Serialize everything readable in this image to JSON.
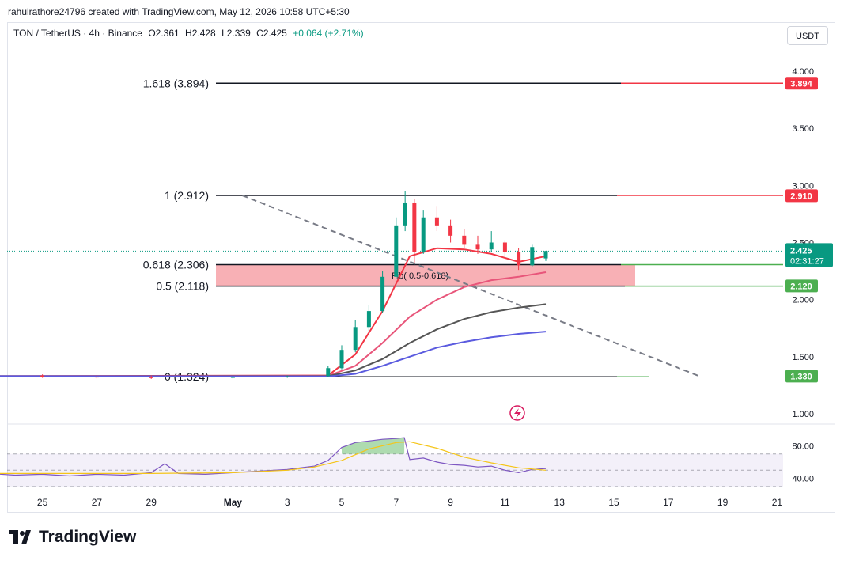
{
  "credit": "rahulrathore24796 created with TradingView.com, May 12, 2026 10:58 UTC+5:30",
  "header": {
    "symbol": "TON / TetherUS · 4h · Binance",
    "o_label": "O",
    "o": "2.361",
    "h_label": "H",
    "h": "2.428",
    "l_label": "L",
    "l": "2.339",
    "c_label": "C",
    "c": "2.425",
    "change": "+0.064 (+2.71%)"
  },
  "currency": "USDT",
  "brand": "TradingView",
  "colors": {
    "up": "#089981",
    "down": "#f23645",
    "fib_zone": "#f7a7ad",
    "ema_red": "#f23645",
    "ema_pink": "#e8557a",
    "ema_dark": "#555555",
    "ema_blue": "#5b5bdf",
    "rsi_line": "#7e57c2",
    "rsi_ma": "#f5c518",
    "green_label": "#4caf50",
    "red_label": "#f23645"
  },
  "chart_data": [
    {
      "type": "candlestick",
      "symbol": "TON / TetherUS",
      "interval": "4h",
      "ylim": [
        0.95,
        4.2
      ],
      "y_ticks": [
        "4.000",
        "3.500",
        "3.000",
        "2.500",
        "2.000",
        "1.500",
        "1.000"
      ],
      "x_ticks": [
        "25",
        "27",
        "29",
        "May",
        "3",
        "5",
        "7",
        "9",
        "11",
        "13",
        "15",
        "17",
        "19",
        "21"
      ],
      "x_tick_days": [
        -6,
        -4,
        -2,
        1,
        3,
        5,
        7,
        9,
        11,
        13,
        15,
        17,
        19,
        21
      ],
      "fib_levels": [
        {
          "label": "1.618 (3.894)",
          "value": 3.894
        },
        {
          "label": "1 (2.912)",
          "value": 2.912
        },
        {
          "label": "0.618 (2.306)",
          "value": 2.306
        },
        {
          "label": "0.5 (2.118)",
          "value": 2.118
        },
        {
          "label": "0 (1.324)",
          "value": 1.324
        }
      ],
      "fib_zone_label": "Fib( 0.5-0.618)",
      "price_labels": [
        {
          "text": "3.894",
          "value": 3.894,
          "color": "red"
        },
        {
          "text": "2.910",
          "value": 2.91,
          "color": "red"
        },
        {
          "text": "2.120",
          "value": 2.12,
          "color": "green"
        },
        {
          "text": "1.330",
          "value": 1.33,
          "color": "green"
        }
      ],
      "last_price": {
        "text": "2.425",
        "countdown": "02:31:27",
        "value": 2.425
      },
      "trendline": {
        "from": [
          1.35,
          2.912
        ],
        "to": [
          18.2,
          1.324
        ]
      },
      "candles": [
        {
          "t": -8.0,
          "o": 1.34,
          "h": 1.35,
          "l": 1.32,
          "c": 1.335
        },
        {
          "t": -6.0,
          "o": 1.335,
          "h": 1.345,
          "l": 1.315,
          "c": 1.325
        },
        {
          "t": -4.0,
          "o": 1.325,
          "h": 1.34,
          "l": 1.31,
          "c": 1.32
        },
        {
          "t": -2.0,
          "o": 1.32,
          "h": 1.335,
          "l": 1.305,
          "c": 1.318
        },
        {
          "t": 1.0,
          "o": 1.318,
          "h": 1.33,
          "l": 1.31,
          "c": 1.322
        },
        {
          "t": 3.0,
          "o": 1.322,
          "h": 1.335,
          "l": 1.315,
          "c": 1.328
        },
        {
          "t": 4.5,
          "o": 1.33,
          "h": 1.42,
          "l": 1.325,
          "c": 1.4
        },
        {
          "t": 5.0,
          "o": 1.4,
          "h": 1.6,
          "l": 1.39,
          "c": 1.56
        },
        {
          "t": 5.5,
          "o": 1.56,
          "h": 1.82,
          "l": 1.54,
          "c": 1.76
        },
        {
          "t": 6.0,
          "o": 1.76,
          "h": 1.95,
          "l": 1.72,
          "c": 1.9
        },
        {
          "t": 6.5,
          "o": 1.9,
          "h": 2.25,
          "l": 1.88,
          "c": 2.2
        },
        {
          "t": 7.0,
          "o": 2.2,
          "h": 2.72,
          "l": 2.18,
          "c": 2.65
        },
        {
          "t": 7.33,
          "o": 2.65,
          "h": 2.95,
          "l": 2.6,
          "c": 2.85
        },
        {
          "t": 7.67,
          "o": 2.85,
          "h": 2.88,
          "l": 2.32,
          "c": 2.42
        },
        {
          "t": 8.0,
          "o": 2.42,
          "h": 2.78,
          "l": 2.4,
          "c": 2.72
        },
        {
          "t": 8.5,
          "o": 2.72,
          "h": 2.82,
          "l": 2.6,
          "c": 2.65
        },
        {
          "t": 9.0,
          "o": 2.65,
          "h": 2.7,
          "l": 2.5,
          "c": 2.56
        },
        {
          "t": 9.5,
          "o": 2.56,
          "h": 2.62,
          "l": 2.45,
          "c": 2.48
        },
        {
          "t": 10.0,
          "o": 2.48,
          "h": 2.56,
          "l": 2.4,
          "c": 2.44
        },
        {
          "t": 10.5,
          "o": 2.44,
          "h": 2.6,
          "l": 2.42,
          "c": 2.5
        },
        {
          "t": 11.0,
          "o": 2.5,
          "h": 2.52,
          "l": 2.38,
          "c": 2.42
        },
        {
          "t": 11.5,
          "o": 2.42,
          "h": 2.45,
          "l": 2.26,
          "c": 2.3
        },
        {
          "t": 12.0,
          "o": 2.3,
          "h": 2.48,
          "l": 2.29,
          "c": 2.46
        },
        {
          "t": 12.5,
          "o": 2.361,
          "h": 2.428,
          "l": 2.339,
          "c": 2.425
        }
      ],
      "ma_lines": [
        {
          "color_key": "ema_red",
          "points": [
            [
              -8,
              1.33
            ],
            [
              4.5,
              1.335
            ],
            [
              5.5,
              1.52
            ],
            [
              6.5,
              1.9
            ],
            [
              7.5,
              2.38
            ],
            [
              8.5,
              2.45
            ],
            [
              9.5,
              2.44
            ],
            [
              10.5,
              2.4
            ],
            [
              11.5,
              2.33
            ],
            [
              12.5,
              2.38
            ]
          ]
        },
        {
          "color_key": "ema_pink",
          "points": [
            [
              -8,
              1.33
            ],
            [
              4.5,
              1.332
            ],
            [
              5.5,
              1.42
            ],
            [
              6.5,
              1.62
            ],
            [
              7.5,
              1.85
            ],
            [
              8.5,
              2.0
            ],
            [
              9.5,
              2.11
            ],
            [
              10.5,
              2.17
            ],
            [
              11.5,
              2.2
            ],
            [
              12.5,
              2.24
            ]
          ]
        },
        {
          "color_key": "ema_dark",
          "points": [
            [
              -8,
              1.33
            ],
            [
              4.5,
              1.33
            ],
            [
              5.5,
              1.38
            ],
            [
              6.5,
              1.48
            ],
            [
              7.5,
              1.62
            ],
            [
              8.5,
              1.74
            ],
            [
              9.5,
              1.83
            ],
            [
              10.5,
              1.89
            ],
            [
              11.5,
              1.93
            ],
            [
              12.5,
              1.96
            ]
          ]
        },
        {
          "color_key": "ema_blue",
          "points": [
            [
              -8,
              1.33
            ],
            [
              4.5,
              1.328
            ],
            [
              5.5,
              1.35
            ],
            [
              6.5,
              1.42
            ],
            [
              7.5,
              1.5
            ],
            [
              8.5,
              1.58
            ],
            [
              9.5,
              1.63
            ],
            [
              10.5,
              1.67
            ],
            [
              11.5,
              1.7
            ],
            [
              12.5,
              1.72
            ]
          ]
        }
      ]
    },
    {
      "type": "line",
      "name": "RSI",
      "ylim": [
        25,
        95
      ],
      "bands": [
        70,
        50,
        30
      ],
      "y_ticks": [
        "80.00",
        "40.00"
      ],
      "rsi": [
        [
          -8,
          46
        ],
        [
          -7,
          44
        ],
        [
          -6,
          45
        ],
        [
          -5,
          43
        ],
        [
          -4,
          45
        ],
        [
          -3,
          44
        ],
        [
          -2,
          47
        ],
        [
          -1.5,
          58
        ],
        [
          -1,
          46
        ],
        [
          0,
          45
        ],
        [
          1,
          47
        ],
        [
          2,
          49
        ],
        [
          3,
          51
        ],
        [
          4,
          55
        ],
        [
          4.5,
          62
        ],
        [
          5,
          78
        ],
        [
          5.5,
          84
        ],
        [
          6,
          86
        ],
        [
          6.5,
          88
        ],
        [
          7,
          89
        ],
        [
          7.3,
          90
        ],
        [
          7.5,
          63
        ],
        [
          8,
          65
        ],
        [
          8.5,
          60
        ],
        [
          9,
          57
        ],
        [
          9.5,
          56
        ],
        [
          10,
          54
        ],
        [
          10.5,
          55
        ],
        [
          11,
          50
        ],
        [
          11.5,
          47
        ],
        [
          12,
          51
        ],
        [
          12.5,
          52
        ]
      ],
      "rsi_ma": [
        [
          -8,
          46
        ],
        [
          -2,
          46
        ],
        [
          1,
          47
        ],
        [
          3,
          50
        ],
        [
          4,
          54
        ],
        [
          5,
          62
        ],
        [
          6,
          76
        ],
        [
          7,
          84
        ],
        [
          7.5,
          85
        ],
        [
          8.5,
          77
        ],
        [
          9.5,
          66
        ],
        [
          10.5,
          59
        ],
        [
          11.5,
          53
        ],
        [
          12.5,
          50
        ]
      ]
    }
  ]
}
